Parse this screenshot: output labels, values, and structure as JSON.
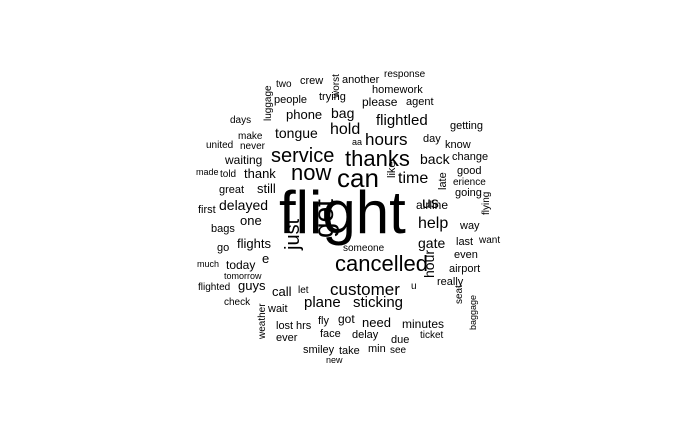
{
  "word_cloud": {
    "words": [
      {
        "text": "flight",
        "rotated": false
      },
      {
        "text": "can",
        "rotated": false
      },
      {
        "text": "get",
        "rotated": true
      },
      {
        "text": "cancelled",
        "rotated": false
      },
      {
        "text": "thanks",
        "rotated": false
      },
      {
        "text": "service",
        "rotated": false
      },
      {
        "text": "now",
        "rotated": false
      },
      {
        "text": "just",
        "rotated": true
      },
      {
        "text": "customer",
        "rotated": false
      },
      {
        "text": "hours",
        "rotated": false
      },
      {
        "text": "time",
        "rotated": false
      },
      {
        "text": "help",
        "rotated": false
      },
      {
        "text": "us",
        "rotated": false
      },
      {
        "text": "hold",
        "rotated": false
      },
      {
        "text": "plane",
        "rotated": false
      },
      {
        "text": "sticking",
        "rotated": false
      },
      {
        "text": "flightled",
        "rotated": false
      },
      {
        "text": "delayed",
        "rotated": false
      },
      {
        "text": "bag",
        "rotated": false
      },
      {
        "text": "hour",
        "rotated": true
      },
      {
        "text": "back",
        "rotated": false
      },
      {
        "text": "gate",
        "rotated": false
      },
      {
        "text": "tongue",
        "rotated": false
      },
      {
        "text": "phone",
        "rotated": false
      },
      {
        "text": "flights",
        "rotated": false
      },
      {
        "text": "thank",
        "rotated": false
      },
      {
        "text": "one",
        "rotated": false
      },
      {
        "text": "call",
        "rotated": false
      },
      {
        "text": "guys",
        "rotated": false
      },
      {
        "text": "need",
        "rotated": false
      },
      {
        "text": "still",
        "rotated": false
      },
      {
        "text": "e",
        "rotated": false
      },
      {
        "text": "waiting",
        "rotated": false
      },
      {
        "text": "airline",
        "rotated": false
      },
      {
        "text": "got",
        "rotated": false
      },
      {
        "text": "minutes",
        "rotated": false
      },
      {
        "text": "today",
        "rotated": false
      },
      {
        "text": "late",
        "rotated": true
      },
      {
        "text": "like",
        "rotated": true
      },
      {
        "text": "people",
        "rotated": false
      },
      {
        "text": "trying",
        "rotated": false
      },
      {
        "text": "crew",
        "rotated": false
      },
      {
        "text": "please",
        "rotated": false
      },
      {
        "text": "homework",
        "rotated": false
      },
      {
        "text": "agent",
        "rotated": false
      },
      {
        "text": "another",
        "rotated": false
      },
      {
        "text": "response",
        "rotated": false
      },
      {
        "text": "worst",
        "rotated": true
      },
      {
        "text": "two",
        "rotated": false
      },
      {
        "text": "luggage",
        "rotated": true
      },
      {
        "text": "days",
        "rotated": false
      },
      {
        "text": "make",
        "rotated": false
      },
      {
        "text": "never",
        "rotated": false
      },
      {
        "text": "united",
        "rotated": false
      },
      {
        "text": "told",
        "rotated": false
      },
      {
        "text": "made",
        "rotated": false
      },
      {
        "text": "great",
        "rotated": false
      },
      {
        "text": "first",
        "rotated": false
      },
      {
        "text": "bags",
        "rotated": false
      },
      {
        "text": "go",
        "rotated": false
      },
      {
        "text": "much",
        "rotated": false
      },
      {
        "text": "tomorrow",
        "rotated": false
      },
      {
        "text": "flighted",
        "rotated": false
      },
      {
        "text": "check",
        "rotated": false
      },
      {
        "text": "weather",
        "rotated": true
      },
      {
        "text": "wait",
        "rotated": false
      },
      {
        "text": "let",
        "rotated": false
      },
      {
        "text": "lost",
        "rotated": false
      },
      {
        "text": "hrs",
        "rotated": false
      },
      {
        "text": "fly",
        "rotated": false
      },
      {
        "text": "ever",
        "rotated": false
      },
      {
        "text": "face",
        "rotated": false
      },
      {
        "text": "delay",
        "rotated": false
      },
      {
        "text": "due",
        "rotated": false
      },
      {
        "text": "ticket",
        "rotated": false
      },
      {
        "text": "smiley",
        "rotated": false
      },
      {
        "text": "take",
        "rotated": false
      },
      {
        "text": "min",
        "rotated": false
      },
      {
        "text": "see",
        "rotated": false
      },
      {
        "text": "new",
        "rotated": false
      },
      {
        "text": "someone",
        "rotated": false
      },
      {
        "text": "aa",
        "rotated": false
      },
      {
        "text": "day",
        "rotated": false
      },
      {
        "text": "know",
        "rotated": false
      },
      {
        "text": "getting",
        "rotated": false
      },
      {
        "text": "change",
        "rotated": false
      },
      {
        "text": "good",
        "rotated": false
      },
      {
        "text": "erience",
        "rotated": false
      },
      {
        "text": "going",
        "rotated": false
      },
      {
        "text": "flying",
        "rotated": true
      },
      {
        "text": "way",
        "rotated": false
      },
      {
        "text": "last",
        "rotated": false
      },
      {
        "text": "want",
        "rotated": false
      },
      {
        "text": "even",
        "rotated": false
      },
      {
        "text": "airport",
        "rotated": false
      },
      {
        "text": "really",
        "rotated": false
      },
      {
        "text": "seat",
        "rotated": true
      },
      {
        "text": "baggage",
        "rotated": true
      },
      {
        "text": "u",
        "rotated": false
      }
    ]
  }
}
